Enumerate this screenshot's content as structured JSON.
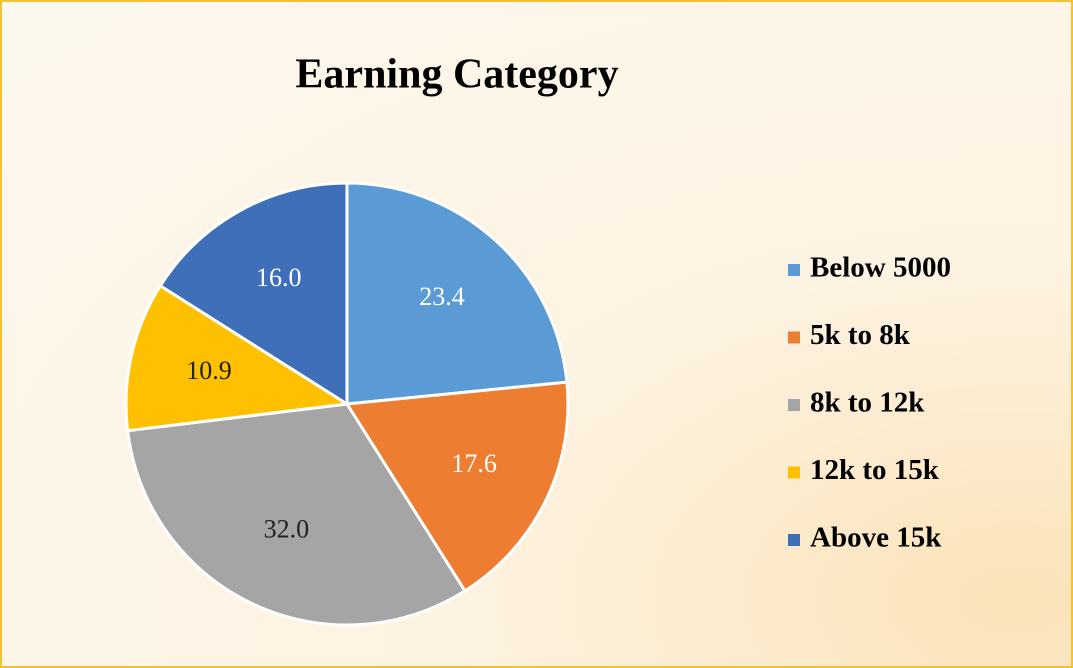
{
  "chart_data": {
    "type": "pie",
    "title": "Earning Category",
    "categories": [
      "Below 5000",
      "5k to 8k",
      "8k to 12k",
      "12k to 15k",
      "Above 15k"
    ],
    "values": [
      23.4,
      17.6,
      32,
      10.9,
      16
    ],
    "value_labels": [
      "23.4",
      "17.6",
      "32.0",
      "10.9",
      "16.0"
    ],
    "colors": [
      "#5b9bd5",
      "#ed7d31",
      "#a5a5a5",
      "#ffc000",
      "#3f6fb8"
    ],
    "legend": "right"
  }
}
